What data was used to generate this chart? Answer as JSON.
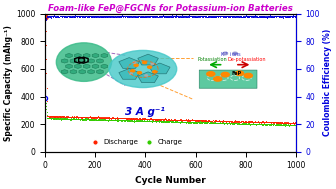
{
  "title": "Foam-like FeP@FGCNs for Potassium-ion Batteries",
  "title_color": "#cc00cc",
  "xlabel": "Cycle Number",
  "ylabel_left": "Specific Capacity (mAhg⁻¹)",
  "ylabel_right": "Coulombic Efficiency (%)",
  "xlim": [
    0,
    1000
  ],
  "ylim_left": [
    0,
    1000
  ],
  "ylim_right": [
    0,
    100
  ],
  "annotation": "3 A g⁻¹",
  "annotation_color": "#0000cc",
  "discharge_color": "#ff2200",
  "charge_color": "#33cc00",
  "ce_color": "#0000dd",
  "background_color": "#ffffff",
  "n_cycles": 1000,
  "first_discharge": 975,
  "first_charge": 390,
  "discharge_plateau": 250,
  "discharge_end": 200,
  "charge_plateau": 235,
  "charge_end": 185,
  "ce_start": 40,
  "ce_plateau": 97.5
}
